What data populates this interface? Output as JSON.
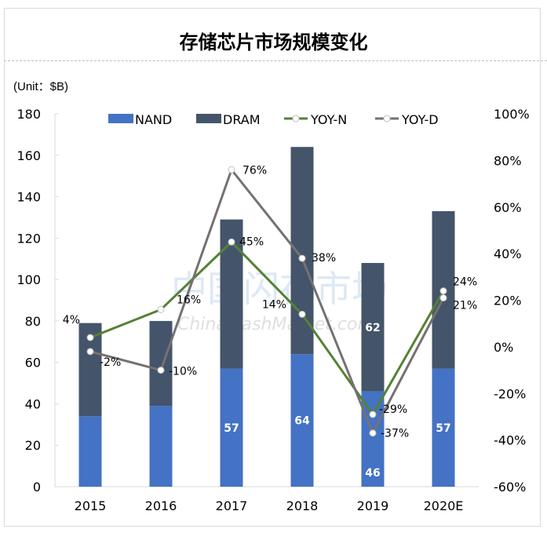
{
  "chart_data": {
    "type": "bar",
    "title": "存储芯片市场规模变化",
    "unit_label": "(Unit：$B)",
    "categories": [
      "2015",
      "2016",
      "2017",
      "2018",
      "2019",
      "2020E"
    ],
    "series": [
      {
        "name": "NAND",
        "kind": "stacked-bar",
        "axis": "left",
        "color": "#4472c4",
        "values": [
          34,
          39,
          57,
          64,
          46,
          57
        ],
        "data_labels": [
          "",
          "",
          "57",
          "64",
          "46",
          "57"
        ]
      },
      {
        "name": "DRAM",
        "kind": "stacked-bar",
        "axis": "left",
        "color": "#44546a",
        "values": [
          45,
          41,
          72,
          100,
          62,
          76
        ],
        "data_labels": [
          "",
          "",
          "",
          "",
          "62",
          ""
        ]
      },
      {
        "name": "YOY-N",
        "kind": "line",
        "axis": "right",
        "color": "#548235",
        "values": [
          4,
          16,
          45,
          14,
          -29,
          24
        ],
        "data_labels": [
          "4%",
          "16%",
          "45%",
          "14%",
          "-29%",
          "24%"
        ]
      },
      {
        "name": "YOY-D",
        "kind": "line",
        "axis": "right",
        "color": "#767171",
        "values": [
          -2,
          -10,
          76,
          38,
          -37,
          21
        ],
        "data_labels": [
          "-2%",
          "-10%",
          "76%",
          "38%",
          "-37%",
          "21%"
        ]
      }
    ],
    "y_left": {
      "min": 0,
      "max": 180,
      "step": 20,
      "ticks": [
        "0",
        "20",
        "40",
        "60",
        "80",
        "100",
        "120",
        "140",
        "160",
        "180"
      ]
    },
    "y_right": {
      "min": -60,
      "max": 100,
      "step": 20,
      "ticks": [
        "-60%",
        "-40%",
        "-20%",
        "0%",
        "20%",
        "40%",
        "60%",
        "80%",
        "100%"
      ]
    },
    "legend_position": "top",
    "grid": false,
    "watermark": {
      "cn": "中国闪存市场",
      "en": "ChinaFlashMarket.com"
    }
  }
}
